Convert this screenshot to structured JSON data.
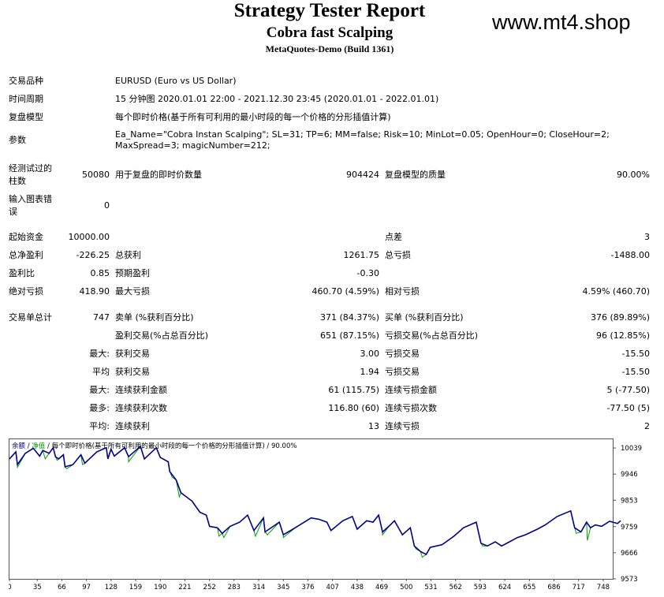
{
  "header": {
    "title": "Strategy Tester Report",
    "subtitle": "Cobra fast Scalping",
    "build": "MetaQuotes-Demo (Build 1361)",
    "watermark": "www.mt4.shop"
  },
  "info": {
    "symbol_label": "交易品种",
    "symbol_value": "EURUSD (Euro vs US Dollar)",
    "period_label": "时间周期",
    "period_value": "15 分钟图 2020.01.01 22:00 - 2021.12.30 23:45 (2020.01.01 - 2022.01.01)",
    "model_label": "复盘模型",
    "model_value": "每个即时价格(基于所有可利用的最小时段的每一个价格的分形插值计算)",
    "params_label": "参数",
    "params_line1": "Ea_Name=\"Cobra Instan Scalping\"; SL=31; TP=6; MM=false; Risk=10; MinLot=0.05; OpenHour=0; CloseHour=2;",
    "params_line2": "MaxSpread=3; magicNumber=212;"
  },
  "bars": {
    "label_1": "经测试过的",
    "label_2": "柱数",
    "value": "50080",
    "ticks_label": "用于复盘的即时价数量",
    "ticks_value": "904424",
    "quality_label": "复盘模型的质量",
    "quality_value": "90.00%"
  },
  "errors": {
    "label_1": "输入图表错",
    "label_2": "误",
    "value": "0"
  },
  "stats": {
    "deposit_label": "起始资金",
    "deposit_value": "10000.00",
    "spread_label": "点差",
    "spread_value": "3",
    "netprofit_label": "总净盈利",
    "netprofit_value": "-226.25",
    "grossprofit_label": "总获利",
    "grossprofit_value": "1261.75",
    "grossloss_label": "总亏损",
    "grossloss_value": "-1488.00",
    "pf_label": "盈利比",
    "pf_value": "0.85",
    "payoff_label": "预期盈利",
    "payoff_value": "-0.30",
    "absdd_label": "绝对亏损",
    "absdd_value": "418.90",
    "maxdd_label": "最大亏损",
    "maxdd_value": "460.70 (4.59%)",
    "reldd_label": "相对亏损",
    "reldd_value": "4.59% (460.70)"
  },
  "trades": {
    "total_label": "交易单总计",
    "total_value": "747",
    "short_label": "卖单 (%获利百分比)",
    "short_value": "371 (84.37%)",
    "long_label": "买单 (%获利百分比)",
    "long_value": "376 (89.89%)",
    "profit_trades_label": "盈利交易(%占总百分比)",
    "profit_trades_value": "651 (87.15%)",
    "loss_trades_label": "亏损交易(%占总百分比)",
    "loss_trades_value": "96 (12.85%)",
    "largest_prefix": "最大:",
    "largest_profit_label": "获利交易",
    "largest_profit_value": "3.00",
    "largest_loss_label": "亏损交易",
    "largest_loss_value": "-15.50",
    "average_prefix": "平均",
    "average_profit_label": "获利交易",
    "average_profit_value": "1.94",
    "average_loss_label": "亏损交易",
    "average_loss_value": "-15.50",
    "maxcons_prefix": "最大:",
    "maxcons_win_label": "连续获利金额",
    "maxcons_win_value": "61 (115.75)",
    "maxcons_loss_label": "连续亏损金额",
    "maxcons_loss_value": "5 (-77.50)",
    "maxconsval_prefix": "最多:",
    "maxconsval_win_label": "连续获利次数",
    "maxconsval_win_value": "116.80 (60)",
    "maxconsval_loss_label": "连续亏损次数",
    "maxconsval_loss_value": "-77.50 (5)",
    "avgcons_prefix": "平均:",
    "avgcons_win_label": "连续获利",
    "avgcons_win_value": "13",
    "avgcons_loss_label": "连续亏损",
    "avgcons_loss_value": "2"
  },
  "chart_data": {
    "type": "line",
    "legend_balance": "余额",
    "legend_sep1": " / ",
    "legend_equity": "净值",
    "legend_sep2": " / ",
    "legend_model": "每个即时价格(基于所有可利用的最小时段的每一个价格的分形插值计算)",
    "legend_sep3": " / ",
    "legend_quality": "90.00%",
    "balance_color": "#00008B",
    "equity_color": "#00A000",
    "xlim": [
      0,
      760
    ],
    "ylim": [
      9573,
      10070
    ],
    "x_ticks": [
      "0",
      "35",
      "66",
      "97",
      "128",
      "159",
      "190",
      "221",
      "252",
      "283",
      "314",
      "345",
      "376",
      "407",
      "438",
      "469",
      "500",
      "531",
      "562",
      "593",
      "624",
      "655",
      "686",
      "717",
      "748"
    ],
    "x_tick_values": [
      0,
      35,
      66,
      97,
      128,
      159,
      190,
      221,
      252,
      283,
      314,
      345,
      376,
      407,
      438,
      469,
      500,
      531,
      562,
      593,
      624,
      655,
      686,
      717,
      748
    ],
    "y_ticks": [
      "10039",
      "9946",
      "9853",
      "9759",
      "9666",
      "9573"
    ],
    "y_tick_values": [
      10039,
      9946,
      9853,
      9759,
      9666,
      9573
    ],
    "balance": [
      [
        0,
        10000
      ],
      [
        8,
        10025
      ],
      [
        10,
        9980
      ],
      [
        20,
        10020
      ],
      [
        30,
        10038
      ],
      [
        38,
        10010
      ],
      [
        42,
        10030
      ],
      [
        50,
        10020
      ],
      [
        55,
        10040
      ],
      [
        58,
        10008
      ],
      [
        62,
        10000
      ],
      [
        68,
        10015
      ],
      [
        70,
        9972
      ],
      [
        80,
        9980
      ],
      [
        90,
        10015
      ],
      [
        95,
        9985
      ],
      [
        110,
        10025
      ],
      [
        122,
        10040
      ],
      [
        124,
        10000
      ],
      [
        128,
        10035
      ],
      [
        132,
        10010
      ],
      [
        145,
        10040
      ],
      [
        150,
        10008
      ],
      [
        165,
        10045
      ],
      [
        170,
        10000
      ],
      [
        185,
        10040
      ],
      [
        190,
        10005
      ],
      [
        200,
        9990
      ],
      [
        202,
        9955
      ],
      [
        210,
        9925
      ],
      [
        216,
        9880
      ],
      [
        230,
        9850
      ],
      [
        240,
        9810
      ],
      [
        248,
        9800
      ],
      [
        252,
        9760
      ],
      [
        262,
        9755
      ],
      [
        268,
        9735
      ],
      [
        278,
        9760
      ],
      [
        290,
        9775
      ],
      [
        300,
        9800
      ],
      [
        308,
        9745
      ],
      [
        320,
        9790
      ],
      [
        322,
        9740
      ],
      [
        340,
        9775
      ],
      [
        345,
        9730
      ],
      [
        360,
        9755
      ],
      [
        380,
        9790
      ],
      [
        390,
        9785
      ],
      [
        400,
        9775
      ],
      [
        405,
        9745
      ],
      [
        420,
        9780
      ],
      [
        432,
        9795
      ],
      [
        438,
        9750
      ],
      [
        450,
        9780
      ],
      [
        458,
        9775
      ],
      [
        465,
        9800
      ],
      [
        470,
        9740
      ],
      [
        478,
        9760
      ],
      [
        485,
        9780
      ],
      [
        495,
        9730
      ],
      [
        505,
        9755
      ],
      [
        510,
        9690
      ],
      [
        518,
        9670
      ],
      [
        525,
        9660
      ],
      [
        530,
        9685
      ],
      [
        545,
        9695
      ],
      [
        560,
        9725
      ],
      [
        572,
        9755
      ],
      [
        588,
        9775
      ],
      [
        594,
        9700
      ],
      [
        602,
        9690
      ],
      [
        612,
        9705
      ],
      [
        620,
        9690
      ],
      [
        630,
        9705
      ],
      [
        640,
        9720
      ],
      [
        650,
        9730
      ],
      [
        665,
        9750
      ],
      [
        675,
        9765
      ],
      [
        690,
        9795
      ],
      [
        707,
        9815
      ],
      [
        712,
        9755
      ],
      [
        720,
        9740
      ],
      [
        727,
        9775
      ],
      [
        732,
        9755
      ],
      [
        738,
        9765
      ],
      [
        746,
        9760
      ],
      [
        756,
        9778
      ],
      [
        766,
        9770
      ],
      [
        770,
        9780
      ]
    ],
    "equity_dips": [
      [
        10,
        9970
      ],
      [
        45,
        10000
      ],
      [
        60,
        9995
      ],
      [
        72,
        9965
      ],
      [
        92,
        9980
      ],
      [
        150,
        9990
      ],
      [
        205,
        9935
      ],
      [
        214,
        9865
      ],
      [
        232,
        9840
      ],
      [
        264,
        9725
      ],
      [
        270,
        9720
      ],
      [
        310,
        9725
      ],
      [
        325,
        9730
      ],
      [
        345,
        9720
      ],
      [
        470,
        9730
      ],
      [
        512,
        9680
      ],
      [
        520,
        9650
      ],
      [
        596,
        9690
      ],
      [
        714,
        9735
      ],
      [
        728,
        9710
      ]
    ]
  }
}
